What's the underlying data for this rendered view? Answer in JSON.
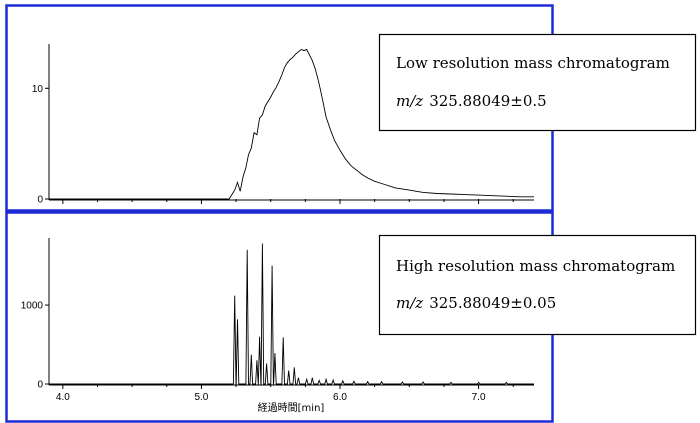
{
  "chart_data": [
    {
      "type": "line",
      "title": "",
      "xlabel": "",
      "ylabel": "",
      "xlim": [
        3.9,
        7.4
      ],
      "ylim": [
        0,
        14
      ],
      "x_ticks": [
        4.0,
        5.0,
        6.0,
        7.0
      ],
      "y_ticks": [
        0,
        10
      ],
      "y_tick_labels": [
        "0",
        "10"
      ],
      "grid": false,
      "legend": "none",
      "annotation": {
        "line1": "Low resolution mass chromatogram",
        "mz_prefix": "m/z",
        "mz_value": "325.88049±0.5"
      },
      "series": [
        {
          "values": [
            [
              3.9,
              0
            ],
            [
              5.2,
              0
            ],
            [
              5.24,
              0.8
            ],
            [
              5.26,
              1.5
            ],
            [
              5.28,
              0.7
            ],
            [
              5.3,
              2.0
            ],
            [
              5.32,
              2.8
            ],
            [
              5.34,
              4.0
            ],
            [
              5.36,
              4.6
            ],
            [
              5.38,
              6.0
            ],
            [
              5.4,
              5.8
            ],
            [
              5.42,
              7.3
            ],
            [
              5.44,
              7.6
            ],
            [
              5.46,
              8.4
            ],
            [
              5.48,
              8.8
            ],
            [
              5.5,
              9.2
            ],
            [
              5.52,
              9.7
            ],
            [
              5.54,
              10.1
            ],
            [
              5.56,
              10.6
            ],
            [
              5.58,
              11.2
            ],
            [
              5.6,
              11.9
            ],
            [
              5.62,
              12.3
            ],
            [
              5.64,
              12.6
            ],
            [
              5.66,
              12.8
            ],
            [
              5.68,
              13.1
            ],
            [
              5.7,
              13.3
            ],
            [
              5.72,
              13.5
            ],
            [
              5.74,
              13.4
            ],
            [
              5.76,
              13.5
            ],
            [
              5.78,
              13.0
            ],
            [
              5.8,
              12.5
            ],
            [
              5.82,
              11.8
            ],
            [
              5.84,
              10.9
            ],
            [
              5.86,
              9.8
            ],
            [
              5.88,
              8.6
            ],
            [
              5.9,
              7.4
            ],
            [
              5.93,
              6.3
            ],
            [
              5.96,
              5.3
            ],
            [
              6.0,
              4.4
            ],
            [
              6.04,
              3.6
            ],
            [
              6.08,
              3.0
            ],
            [
              6.12,
              2.6
            ],
            [
              6.16,
              2.2
            ],
            [
              6.2,
              1.9
            ],
            [
              6.25,
              1.6
            ],
            [
              6.3,
              1.4
            ],
            [
              6.4,
              1.0
            ],
            [
              6.5,
              0.8
            ],
            [
              6.6,
              0.6
            ],
            [
              6.7,
              0.5
            ],
            [
              6.8,
              0.45
            ],
            [
              6.9,
              0.4
            ],
            [
              7.0,
              0.35
            ],
            [
              7.1,
              0.3
            ],
            [
              7.2,
              0.25
            ],
            [
              7.3,
              0.2
            ],
            [
              7.4,
              0.2
            ]
          ]
        }
      ]
    },
    {
      "type": "line",
      "title": "",
      "xlabel": "経過時間[min]",
      "ylabel": "",
      "xlim": [
        3.9,
        7.4
      ],
      "ylim": [
        0,
        1850
      ],
      "x_ticks": [
        4.0,
        5.0,
        6.0,
        7.0
      ],
      "x_tick_labels": [
        "4.0",
        "5.0",
        "6.0",
        "7.0"
      ],
      "y_ticks": [
        0,
        1000
      ],
      "y_tick_labels": [
        "0",
        "1000"
      ],
      "grid": false,
      "legend": "none",
      "annotation": {
        "line1": "High resolution mass chromatogram",
        "mz_prefix": "m/z",
        "mz_value": "325.88049±0.05"
      },
      "series": [
        {
          "peaks": [
            [
              5.24,
              1120
            ],
            [
              5.26,
              820
            ],
            [
              5.33,
              1700
            ],
            [
              5.36,
              370
            ],
            [
              5.4,
              300
            ],
            [
              5.42,
              600
            ],
            [
              5.44,
              1780
            ],
            [
              5.47,
              260
            ],
            [
              5.51,
              1500
            ],
            [
              5.53,
              390
            ],
            [
              5.59,
              590
            ],
            [
              5.63,
              170
            ],
            [
              5.67,
              210
            ],
            [
              5.7,
              80
            ],
            [
              5.76,
              60
            ],
            [
              5.8,
              80
            ],
            [
              5.85,
              45
            ],
            [
              5.9,
              60
            ],
            [
              5.95,
              50
            ],
            [
              6.02,
              40
            ],
            [
              6.1,
              35
            ],
            [
              6.2,
              30
            ],
            [
              6.3,
              30
            ],
            [
              6.45,
              25
            ],
            [
              6.6,
              25
            ],
            [
              6.8,
              20
            ],
            [
              7.0,
              20
            ],
            [
              7.2,
              20
            ]
          ]
        }
      ]
    }
  ]
}
